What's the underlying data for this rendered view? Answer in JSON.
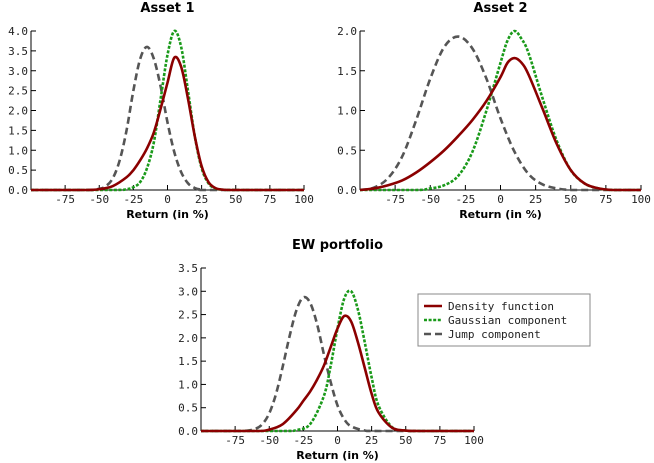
{
  "chart_data": [
    {
      "type": "line",
      "title": "Asset 1",
      "xlabel": "Return (in %)",
      "ylabel": "",
      "xlim": [
        -100,
        100
      ],
      "ylim": [
        0,
        4.0
      ],
      "xticks": [
        -75,
        -50,
        -25,
        0,
        25,
        50,
        75,
        100
      ],
      "yticks": [
        0.0,
        0.5,
        1.0,
        1.5,
        2.0,
        2.5,
        3.0,
        3.5,
        4.0
      ],
      "ytick_labels": [
        "0.0",
        "0.5",
        "1.0",
        "1.5",
        "2.0",
        "2.5",
        "3.0",
        "3.5",
        "4.0"
      ],
      "series": [
        {
          "name": "Density function",
          "color": "#8b0000",
          "style": "solid",
          "x": [
            -100,
            -60,
            -50,
            -40,
            -30,
            -25,
            -20,
            -15,
            -10,
            -5,
            0,
            5,
            10,
            15,
            20,
            25,
            30,
            35,
            40,
            50,
            100
          ],
          "y": [
            0,
            0,
            0.02,
            0.1,
            0.32,
            0.5,
            0.75,
            1.05,
            1.45,
            2.05,
            2.7,
            3.33,
            3.1,
            2.3,
            1.35,
            0.6,
            0.2,
            0.05,
            0.01,
            0,
            0
          ]
        },
        {
          "name": "Gaussian component",
          "color": "#1a9a1a",
          "style": "dotted",
          "x": [
            -100,
            -40,
            -30,
            -25,
            -20,
            -15,
            -10,
            -5,
            0,
            5,
            10,
            15,
            20,
            25,
            30,
            35,
            40,
            50,
            100
          ],
          "y": [
            0,
            0,
            0.02,
            0.07,
            0.2,
            0.55,
            1.2,
            2.3,
            3.4,
            4.0,
            3.6,
            2.5,
            1.35,
            0.55,
            0.17,
            0.04,
            0.01,
            0,
            0
          ]
        },
        {
          "name": "Jump component",
          "color": "#555555",
          "style": "dashed",
          "x": [
            -100,
            -60,
            -50,
            -45,
            -40,
            -35,
            -30,
            -25,
            -20,
            -15,
            -10,
            -5,
            0,
            5,
            10,
            15,
            20,
            25,
            30,
            100
          ],
          "y": [
            0,
            0,
            0.03,
            0.1,
            0.3,
            0.75,
            1.5,
            2.5,
            3.3,
            3.6,
            3.3,
            2.6,
            1.7,
            0.95,
            0.45,
            0.17,
            0.05,
            0.01,
            0,
            0
          ]
        }
      ]
    },
    {
      "type": "line",
      "title": "Asset 2",
      "xlabel": "Return (in %)",
      "ylabel": "",
      "xlim": [
        -100,
        100
      ],
      "ylim": [
        0,
        2.0
      ],
      "xticks": [
        -75,
        -50,
        -25,
        0,
        25,
        50,
        75,
        100
      ],
      "yticks": [
        0.0,
        0.5,
        1.0,
        1.5,
        2.0
      ],
      "ytick_labels": [
        "0.0",
        "0.5",
        "1.0",
        "1.5",
        "2.0"
      ],
      "series": [
        {
          "name": "Density function",
          "color": "#8b0000",
          "style": "solid",
          "x": [
            -100,
            -90,
            -80,
            -70,
            -60,
            -50,
            -40,
            -30,
            -20,
            -10,
            0,
            5,
            10,
            15,
            20,
            30,
            40,
            50,
            60,
            70,
            80,
            100
          ],
          "y": [
            0,
            0.02,
            0.06,
            0.12,
            0.22,
            0.35,
            0.5,
            0.68,
            0.88,
            1.12,
            1.42,
            1.6,
            1.66,
            1.6,
            1.45,
            1.02,
            0.58,
            0.25,
            0.08,
            0.02,
            0,
            0
          ]
        },
        {
          "name": "Gaussian component",
          "color": "#1a9a1a",
          "style": "dotted",
          "x": [
            -100,
            -60,
            -50,
            -40,
            -30,
            -20,
            -10,
            0,
            5,
            10,
            15,
            20,
            30,
            40,
            50,
            60,
            70,
            80,
            100
          ],
          "y": [
            0,
            0,
            0.02,
            0.06,
            0.18,
            0.48,
            1.0,
            1.6,
            1.88,
            2.0,
            1.9,
            1.72,
            1.15,
            0.62,
            0.25,
            0.08,
            0.02,
            0,
            0
          ]
        },
        {
          "name": "Jump component",
          "color": "#555555",
          "style": "dashed",
          "x": [
            -100,
            -90,
            -80,
            -70,
            -60,
            -50,
            -40,
            -30,
            -20,
            -10,
            0,
            10,
            20,
            30,
            40,
            50,
            60,
            100
          ],
          "y": [
            0,
            0.03,
            0.15,
            0.42,
            0.88,
            1.4,
            1.8,
            1.93,
            1.78,
            1.4,
            0.9,
            0.48,
            0.2,
            0.07,
            0.02,
            0,
            0,
            0
          ]
        }
      ]
    },
    {
      "type": "line",
      "title": "EW portfolio",
      "xlabel": "Return (in %)",
      "ylabel": "",
      "xlim": [
        -100,
        100
      ],
      "ylim": [
        0,
        3.5
      ],
      "xticks": [
        -75,
        -50,
        -25,
        0,
        25,
        50,
        75,
        100
      ],
      "xtick_labels": [
        "-75",
        "-50",
        "-25",
        "0",
        "25",
        "50",
        "75",
        "100"
      ],
      "yticks": [
        0.0,
        0.5,
        1.0,
        1.5,
        2.0,
        2.5,
        3.0,
        3.5
      ],
      "ytick_labels": [
        "0.0",
        "0.5",
        "1.0",
        "1.5",
        "2.0",
        "2.5",
        "3.0",
        "3.5"
      ],
      "series": [
        {
          "name": "Density function",
          "color": "#8b0000",
          "style": "solid",
          "x": [
            -100,
            -60,
            -50,
            -40,
            -30,
            -25,
            -20,
            -15,
            -10,
            -5,
            0,
            5,
            10,
            15,
            20,
            25,
            30,
            40,
            50,
            60,
            100
          ],
          "y": [
            0,
            0,
            0.03,
            0.15,
            0.45,
            0.65,
            0.85,
            1.1,
            1.4,
            1.8,
            2.2,
            2.47,
            2.35,
            1.9,
            1.35,
            0.8,
            0.4,
            0.07,
            0.01,
            0,
            0
          ]
        },
        {
          "name": "Gaussian component",
          "color": "#1a9a1a",
          "style": "dotted",
          "x": [
            -100,
            -40,
            -30,
            -20,
            -10,
            -5,
            0,
            5,
            10,
            15,
            20,
            25,
            30,
            40,
            50,
            60,
            100
          ],
          "y": [
            0,
            0,
            0.02,
            0.15,
            0.75,
            1.4,
            2.2,
            2.85,
            3.0,
            2.6,
            1.9,
            1.15,
            0.55,
            0.08,
            0.01,
            0,
            0
          ]
        },
        {
          "name": "Jump component",
          "color": "#555555",
          "style": "dashed",
          "x": [
            -100,
            -70,
            -60,
            -55,
            -50,
            -45,
            -40,
            -35,
            -30,
            -25,
            -20,
            -15,
            -10,
            -5,
            0,
            5,
            10,
            20,
            30,
            100
          ],
          "y": [
            0,
            0,
            0.05,
            0.15,
            0.38,
            0.8,
            1.4,
            2.05,
            2.6,
            2.87,
            2.75,
            2.3,
            1.65,
            1.05,
            0.55,
            0.25,
            0.1,
            0.01,
            0,
            0
          ]
        }
      ]
    }
  ],
  "legend": {
    "entries": [
      {
        "label": "Density function",
        "color": "#8b0000",
        "style": "solid"
      },
      {
        "label": "Gaussian component",
        "color": "#1a9a1a",
        "style": "dotted"
      },
      {
        "label": "Jump component",
        "color": "#555555",
        "style": "dashed"
      }
    ],
    "placement": "right of EW portfolio panel"
  }
}
